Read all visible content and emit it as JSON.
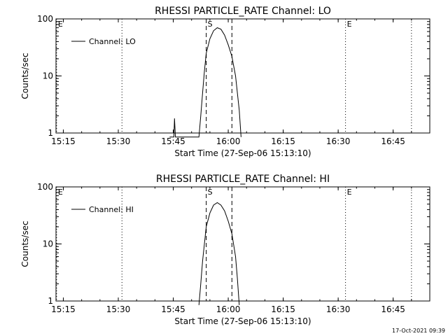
{
  "timestamp": "17-Oct-2021 09:39",
  "chart_data": [
    {
      "type": "line",
      "title": "RHESSI PARTICLE_RATE Channel: LO",
      "xlabel": "Start Time (27-Sep-06 15:13:10)",
      "ylabel": "Counts/sec",
      "y_scale": "log",
      "xlim": [
        "15:13",
        "16:55"
      ],
      "ylim": [
        1,
        100
      ],
      "x_ticks": [
        "15:15",
        "15:30",
        "15:45",
        "16:00",
        "16:15",
        "16:30",
        "16:45"
      ],
      "y_ticks": [
        "1",
        "10",
        "100"
      ],
      "legend": "top-left",
      "series": [
        {
          "name": "Channel: LO",
          "color": "#000000",
          "points": [
            [
              "15:44:00",
              0.85
            ],
            [
              "15:45:10",
              0.85
            ],
            [
              "15:45:20",
              1.8
            ],
            [
              "15:45:35",
              0.85
            ],
            [
              "15:52:00",
              0.85
            ],
            [
              "15:52:30",
              2
            ],
            [
              "15:53:00",
              5
            ],
            [
              "15:53:30",
              12
            ],
            [
              "15:54:00",
              25
            ],
            [
              "15:55:00",
              45
            ],
            [
              "15:56:00",
              62
            ],
            [
              "15:57:00",
              70
            ],
            [
              "15:58:00",
              66
            ],
            [
              "15:59:00",
              52
            ],
            [
              "16:00:00",
              35
            ],
            [
              "16:01:00",
              22
            ],
            [
              "16:02:00",
              10
            ],
            [
              "16:03:00",
              2.5
            ],
            [
              "16:03:30",
              0.85
            ]
          ]
        }
      ],
      "markers": [
        {
          "label": "E",
          "time": "15:13:10",
          "style": "dotted"
        },
        {
          "label": "",
          "time": "15:31:00",
          "style": "dotted"
        },
        {
          "label": "S",
          "time": "15:54:00",
          "style": "dashed"
        },
        {
          "label": "",
          "time": "16:01:00",
          "style": "dashed"
        },
        {
          "label": "E",
          "time": "16:32:00",
          "style": "dotted"
        },
        {
          "label": "",
          "time": "16:50:00",
          "style": "dotted"
        }
      ]
    },
    {
      "type": "line",
      "title": "RHESSI PARTICLE_RATE Channel: HI",
      "xlabel": "Start Time (27-Sep-06 15:13:10)",
      "ylabel": "Counts/sec",
      "y_scale": "log",
      "xlim": [
        "15:13",
        "16:55"
      ],
      "ylim": [
        1,
        100
      ],
      "x_ticks": [
        "15:15",
        "15:30",
        "15:45",
        "16:00",
        "16:15",
        "16:30",
        "16:45"
      ],
      "y_ticks": [
        "1",
        "10",
        "100"
      ],
      "legend": "top-left",
      "series": [
        {
          "name": "Channel: HI",
          "color": "#000000",
          "points": [
            [
              "15:52:00",
              0.85
            ],
            [
              "15:52:30",
              2
            ],
            [
              "15:53:00",
              5
            ],
            [
              "15:53:30",
              10
            ],
            [
              "15:54:00",
              20
            ],
            [
              "15:55:00",
              35
            ],
            [
              "15:56:00",
              48
            ],
            [
              "15:57:00",
              53
            ],
            [
              "15:58:00",
              48
            ],
            [
              "15:59:00",
              38
            ],
            [
              "16:00:00",
              25
            ],
            [
              "16:01:00",
              15
            ],
            [
              "16:02:00",
              6
            ],
            [
              "16:02:30",
              2.5
            ],
            [
              "16:03:00",
              0.85
            ]
          ]
        }
      ],
      "markers": [
        {
          "label": "E",
          "time": "15:13:10",
          "style": "dotted"
        },
        {
          "label": "",
          "time": "15:31:00",
          "style": "dotted"
        },
        {
          "label": "S",
          "time": "15:54:00",
          "style": "dashed"
        },
        {
          "label": "",
          "time": "16:01:00",
          "style": "dashed"
        },
        {
          "label": "E",
          "time": "16:32:00",
          "style": "dotted"
        },
        {
          "label": "",
          "time": "16:50:00",
          "style": "dotted"
        }
      ]
    }
  ]
}
